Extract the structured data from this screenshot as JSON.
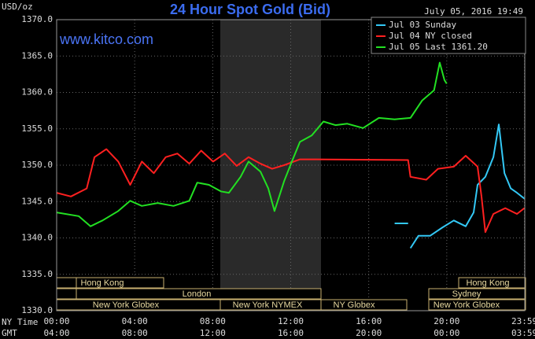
{
  "chart_data": {
    "type": "line",
    "title": "24 Hour Spot Gold (Bid)",
    "unit_label": "USD/oz",
    "timestamp": "July 05, 2016 19:49",
    "site": "www.kitco.com",
    "ylim": [
      1330,
      1370
    ],
    "yticks": [
      {
        "value": 1330,
        "label": "1330.0"
      },
      {
        "value": 1335,
        "label": "1335.0"
      },
      {
        "value": 1340,
        "label": "1340.0"
      },
      {
        "value": 1345,
        "label": "1345.0"
      },
      {
        "value": 1350,
        "label": "1350.0"
      },
      {
        "value": 1355,
        "label": "1355.0"
      },
      {
        "value": 1360,
        "label": "1360.0"
      },
      {
        "value": 1365,
        "label": "1365.0"
      },
      {
        "value": 1370,
        "label": "1370.0"
      }
    ],
    "xlim": [
      0,
      24
    ],
    "xticks": [
      {
        "value": 0,
        "label": "00:00"
      },
      {
        "value": 4,
        "label": "04:00"
      },
      {
        "value": 8,
        "label": "08:00"
      },
      {
        "value": 12,
        "label": "12:00"
      },
      {
        "value": 16,
        "label": "16:00"
      },
      {
        "value": 20,
        "label": "20:00"
      },
      {
        "value": 23.983,
        "label": "23:59"
      }
    ],
    "x_axis_label": "NY Time",
    "x2_axis_label": "GMT",
    "x2_tick_labels": [
      "04:00",
      "08:00",
      "12:00",
      "16:00",
      "20:00",
      "00:00",
      "03:59"
    ],
    "grid": true,
    "legend_position": "top-right",
    "markets": [
      "Hong Kong",
      "Hong Kong",
      "London",
      "Sydney",
      "New York Globex",
      "New York NYMEX",
      "NY Globex",
      "New York Globex"
    ],
    "series": [
      {
        "name": "Jul 03 Sunday",
        "color": "#33c8f5",
        "x": [
          17.33,
          18.02,
          18.06,
          18.14,
          18.55,
          19.15,
          19.76,
          20.36,
          20.97,
          21.38,
          21.58,
          21.98,
          22.39,
          22.67,
          22.96,
          23.28,
          23.6,
          23.98
        ],
        "values": [
          1342.0,
          1342.0,
          null,
          1338.6,
          1340.3,
          1340.3,
          1341.4,
          1342.4,
          1341.6,
          1343.5,
          1347.3,
          1348.4,
          1351.1,
          1355.6,
          1348.9,
          1346.8,
          1346.2,
          1345.4
        ]
      },
      {
        "name": "Jul 04 NY closed",
        "color": "#ff2020",
        "x": [
          0,
          0.73,
          1.54,
          1.94,
          2.55,
          3.16,
          3.77,
          4.37,
          4.98,
          5.59,
          6.19,
          6.8,
          7.41,
          8.02,
          8.62,
          9.23,
          9.84,
          10.45,
          11.05,
          11.66,
          12.47,
          13.28,
          18.02,
          18.14,
          18.95,
          19.55,
          20.36,
          20.97,
          21.58,
          21.78,
          21.98,
          22.39,
          23.0,
          23.6,
          23.98
        ],
        "values": [
          1346.2,
          1345.7,
          1346.8,
          1351.1,
          1352.2,
          1350.5,
          1347.3,
          1350.5,
          1348.9,
          1351.1,
          1351.6,
          1350.2,
          1352.0,
          1350.5,
          1351.6,
          1349.9,
          1351.1,
          1350.2,
          1349.5,
          1350.0,
          1350.8,
          1350.8,
          1350.7,
          1348.4,
          1348.0,
          1349.5,
          1349.8,
          1351.3,
          1349.8,
          1345.7,
          1340.8,
          1343.3,
          1344.1,
          1343.3,
          1344.1
        ]
      },
      {
        "name": "Jul 05 Last 1361.20",
        "color": "#22e022",
        "x": [
          0,
          1.13,
          1.74,
          2.35,
          3.16,
          3.77,
          4.37,
          5.18,
          5.99,
          6.8,
          7.21,
          7.81,
          8.42,
          8.83,
          9.43,
          9.84,
          10.45,
          10.85,
          11.17,
          11.66,
          12.06,
          12.47,
          13.08,
          13.68,
          14.29,
          14.9,
          15.71,
          16.52,
          17.33,
          18.14,
          18.74,
          19.35,
          19.64,
          19.88,
          20.0
        ],
        "values": [
          1343.5,
          1343.0,
          1341.6,
          1342.4,
          1343.7,
          1345.1,
          1344.4,
          1344.8,
          1344.4,
          1345.1,
          1347.6,
          1347.3,
          1346.4,
          1346.2,
          1348.4,
          1350.5,
          1349.1,
          1346.8,
          1343.7,
          1347.8,
          1350.5,
          1353.2,
          1354.1,
          1356.0,
          1355.5,
          1355.7,
          1355.1,
          1356.5,
          1356.3,
          1356.5,
          1358.9,
          1360.3,
          1364.1,
          1361.7,
          1361.2
        ]
      }
    ]
  }
}
